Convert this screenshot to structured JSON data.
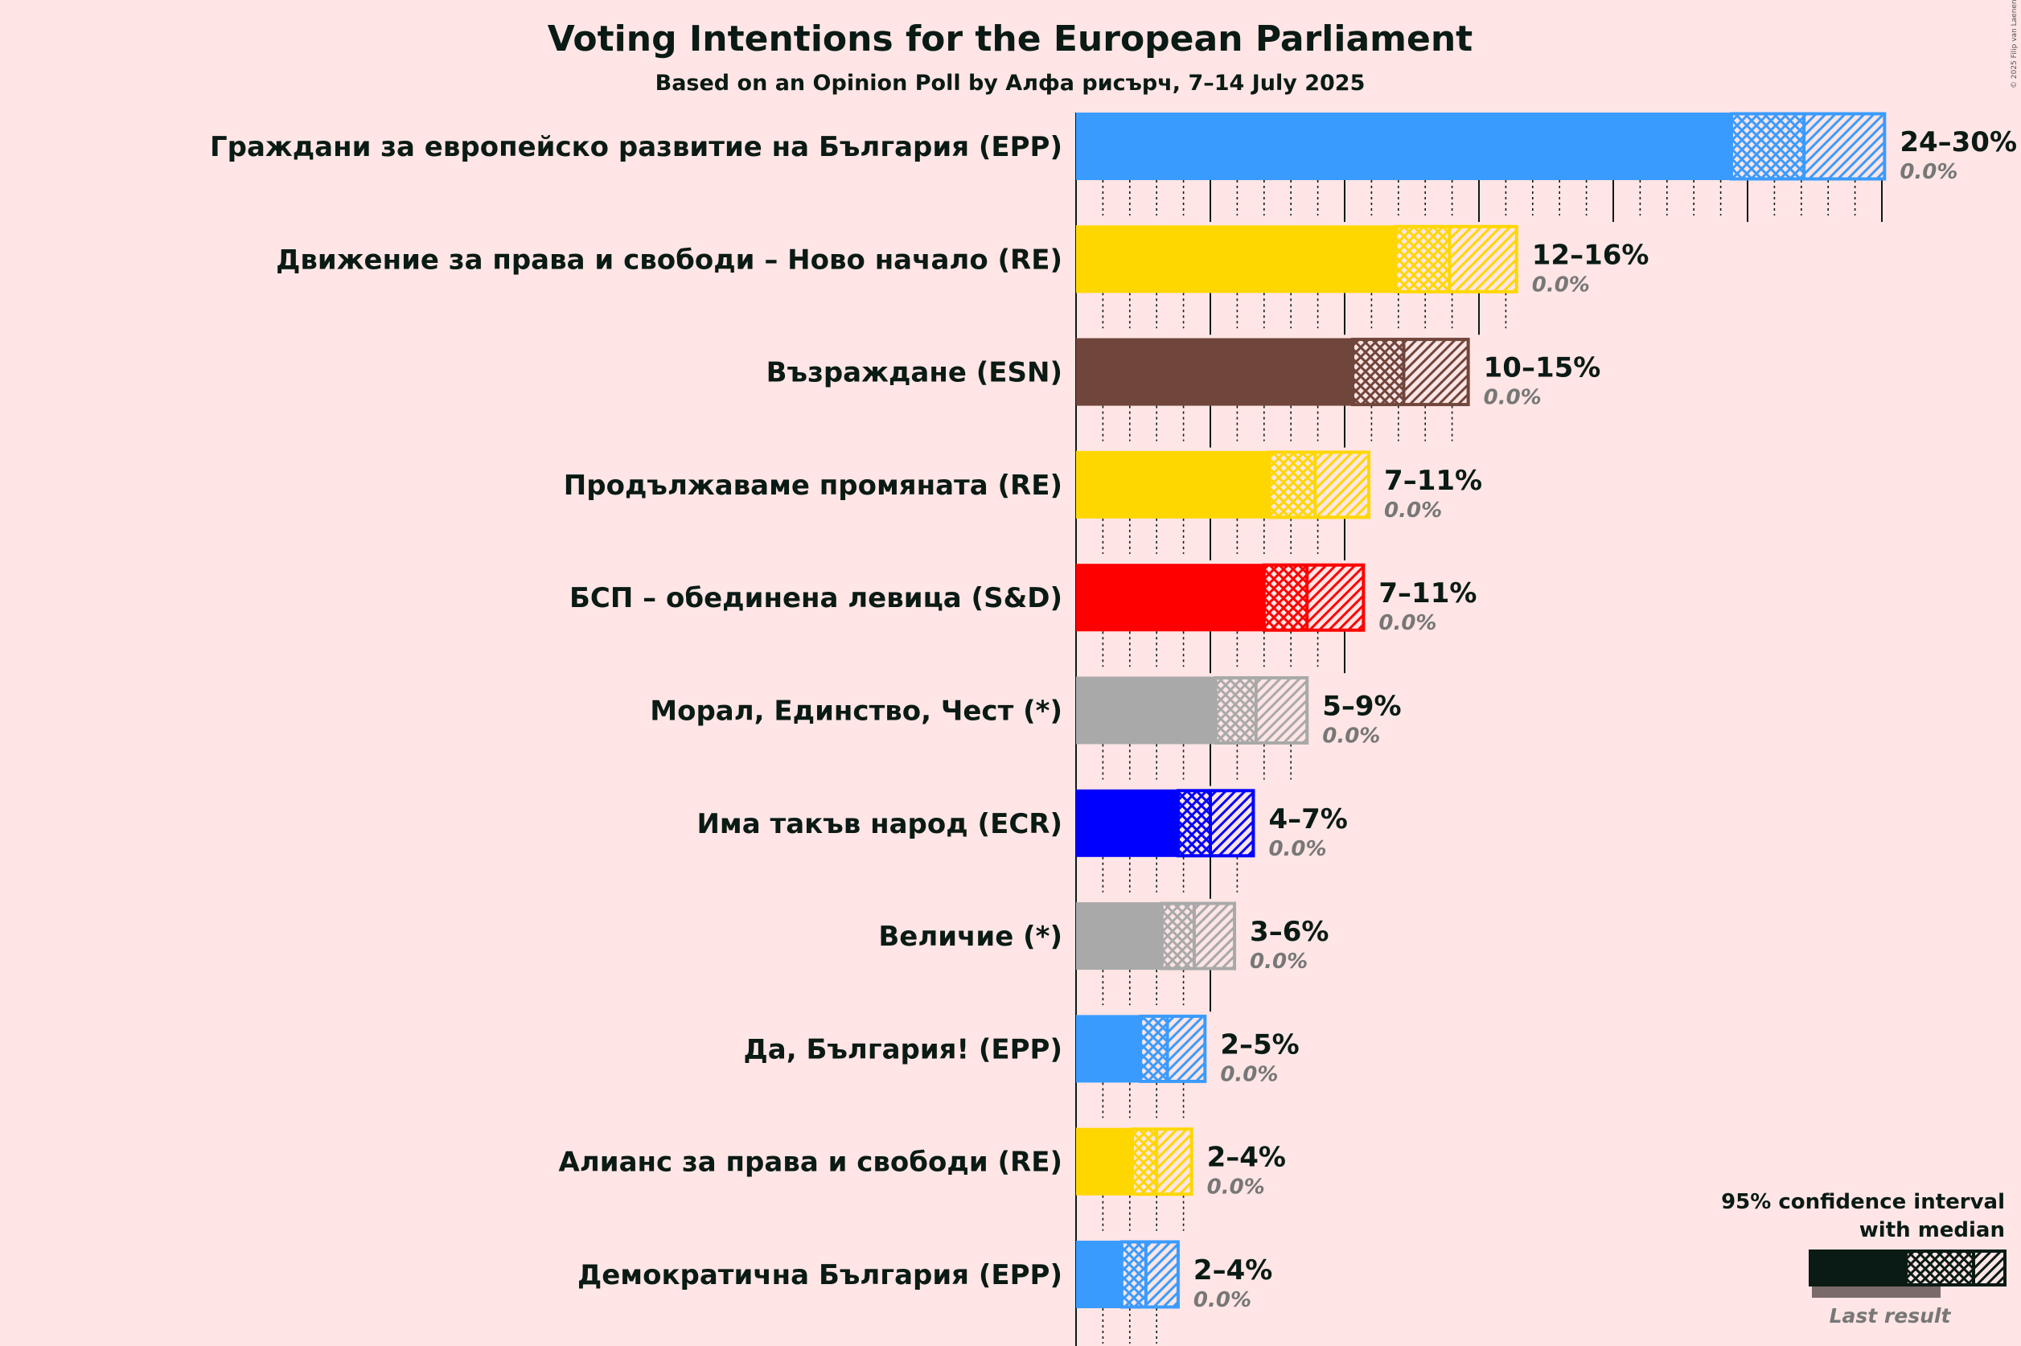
{
  "title": "Voting Intentions for the European Parliament",
  "subtitle": "Based on an Opinion Poll by Алфа рисърч, 7–14 July 2025",
  "copyright": "© 2025 Filip van Laenen",
  "legend": {
    "line1": "95% confidence interval",
    "line2": "with median",
    "last_result": "Last result"
  },
  "chart_data": {
    "type": "bar",
    "orientation": "horizontal",
    "x_unit": "%",
    "xlim": [
      0,
      30
    ],
    "major_ticks_every": 5,
    "minor_ticks_every": 1,
    "series": [
      {
        "party": "Граждани за европейско развитие на България (EPP)",
        "color": "#3A9BFF",
        "lo": 24.4,
        "median": 27.1,
        "hi": 30.1,
        "range_label": "24–30%",
        "last_result": "0.0%"
      },
      {
        "party": "Движение за права и свободи – Ново начало (RE)",
        "color": "#FFD700",
        "lo": 11.9,
        "median": 13.9,
        "hi": 16.4,
        "range_label": "12–16%",
        "last_result": "0.0%"
      },
      {
        "party": "Възраждане (ESN)",
        "color": "#70453B",
        "lo": 10.3,
        "median": 12.2,
        "hi": 14.6,
        "range_label": "10–15%",
        "last_result": "0.0%"
      },
      {
        "party": "Продължаваме промяната (RE)",
        "color": "#FFD700",
        "lo": 7.2,
        "median": 8.9,
        "hi": 10.9,
        "range_label": "7–11%",
        "last_result": "0.0%"
      },
      {
        "party": "БСП – обединена левица (S&D)",
        "color": "#FF0000",
        "lo": 7.0,
        "median": 8.6,
        "hi": 10.7,
        "range_label": "7–11%",
        "last_result": "0.0%"
      },
      {
        "party": "Морал, Единство, Чест (*)",
        "color": "#A9A9A9",
        "lo": 5.2,
        "median": 6.7,
        "hi": 8.6,
        "range_label": "5–9%",
        "last_result": "0.0%"
      },
      {
        "party": "Има такъв народ (ECR)",
        "color": "#0000FF",
        "lo": 3.8,
        "median": 5.0,
        "hi": 6.6,
        "range_label": "4–7%",
        "last_result": "0.0%"
      },
      {
        "party": "Величие (*)",
        "color": "#A9A9A9",
        "lo": 3.2,
        "median": 4.4,
        "hi": 5.9,
        "range_label": "3–6%",
        "last_result": "0.0%"
      },
      {
        "party": "Да, България! (EPP)",
        "color": "#3A9BFF",
        "lo": 2.4,
        "median": 3.4,
        "hi": 4.8,
        "range_label": "2–5%",
        "last_result": "0.0%"
      },
      {
        "party": "Алианс за права и свободи (RE)",
        "color": "#FFD700",
        "lo": 2.1,
        "median": 3.0,
        "hi": 4.3,
        "range_label": "2–4%",
        "last_result": "0.0%"
      },
      {
        "party": "Демократична България (EPP)",
        "color": "#3A9BFF",
        "lo": 1.7,
        "median": 2.6,
        "hi": 3.8,
        "range_label": "2–4%",
        "last_result": "0.0%"
      }
    ]
  }
}
